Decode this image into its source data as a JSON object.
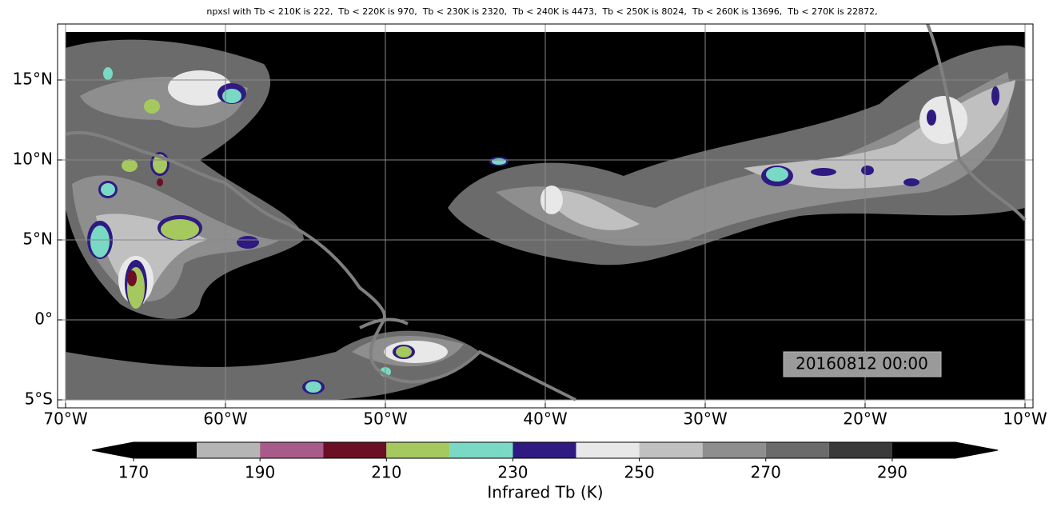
{
  "title": "npxsl with Tb < 210K is 222,  Tb < 220K is 970,  Tb < 230K is 2320,  Tb < 240K is 4473,  Tb < 250K is 8024,  Tb < 260K is 13696,  Tb < 270K is 22872,",
  "map": {
    "xlim": [
      -70.5,
      -9.5
    ],
    "ylim": [
      -5.5,
      18.5
    ],
    "lon_ticks": [
      {
        "value": -70,
        "label": "70°W"
      },
      {
        "value": -60,
        "label": "60°W"
      },
      {
        "value": -50,
        "label": "50°W"
      },
      {
        "value": -40,
        "label": "40°W"
      },
      {
        "value": -30,
        "label": "30°W"
      },
      {
        "value": -20,
        "label": "20°W"
      },
      {
        "value": -10,
        "label": "10°W"
      }
    ],
    "lat_ticks": [
      {
        "value": 15,
        "label": "15°N"
      },
      {
        "value": 10,
        "label": "10°N"
      },
      {
        "value": 5,
        "label": "5°N"
      },
      {
        "value": 0,
        "label": "0°"
      },
      {
        "value": -5,
        "label": "5°S"
      }
    ],
    "grid": true,
    "timestamp": "20160812 00:00"
  },
  "colorbar": {
    "label": "Infrared Tb (K)",
    "levels": [
      170,
      180,
      190,
      200,
      210,
      220,
      230,
      240,
      250,
      260,
      270,
      280,
      290,
      300
    ],
    "colors": [
      "#000000",
      "#b5b5b5",
      "#a85a8a",
      "#6b0f24",
      "#a5c95e",
      "#79d9c5",
      "#2f1a82",
      "#e8e8e8",
      "#c0c0c0",
      "#8e8e8e",
      "#6b6b6b",
      "#3a3a3a",
      "#000000"
    ],
    "ticks": [
      170,
      190,
      210,
      230,
      250,
      270,
      290
    ]
  }
}
